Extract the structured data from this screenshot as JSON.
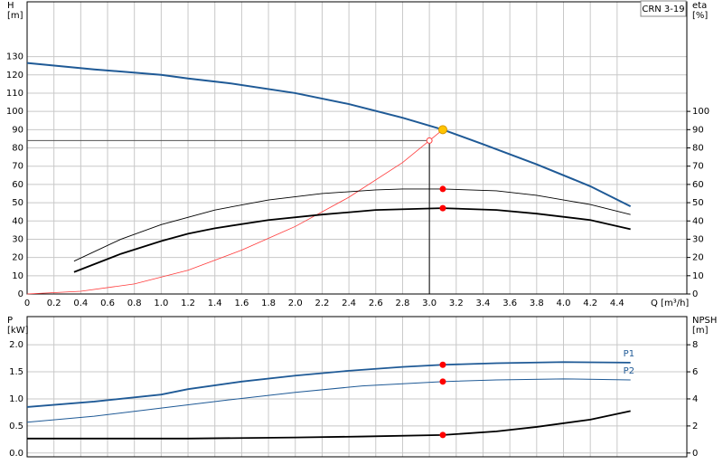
{
  "chart_data": [
    {
      "type": "line",
      "title": "CRN 3-19",
      "y_label": [
        "H",
        "[m]"
      ],
      "y2_label": [
        "eta",
        "[%]"
      ],
      "x_label": "Q [m³/h]",
      "xlim": [
        0,
        4.92
      ],
      "ylim": [
        0,
        160
      ],
      "y2lim": [
        0,
        160
      ],
      "xticks": [
        0,
        0.2,
        0.4,
        0.6,
        0.8,
        {
          "value": 1,
          "label": "1.0"
        },
        1.2,
        1.4,
        1.6,
        1.8,
        {
          "value": 2,
          "label": "2.0"
        },
        2.2,
        2.4,
        2.6,
        2.8,
        {
          "value": 3,
          "label": "3.0"
        },
        3.2,
        3.4,
        3.6,
        3.8,
        {
          "value": 4,
          "label": "4.0"
        },
        4.2,
        4.4
      ],
      "yticks": [
        0,
        10,
        20,
        30,
        40,
        50,
        60,
        70,
        80,
        90,
        100,
        110,
        120,
        130
      ],
      "y2ticks": [
        0,
        10,
        20,
        30,
        40,
        50,
        60,
        70,
        80,
        90,
        100
      ],
      "grid": true,
      "duty_point": {
        "x": 3.1,
        "y": 90
      },
      "required_point": {
        "x": 3.0,
        "y": 84
      },
      "series": [
        {
          "color": "#1f5a96",
          "width": 2,
          "marker": false,
          "x": [
            0,
            0.5,
            1.0,
            1.2,
            1.5,
            2.0,
            2.4,
            2.8,
            3.1,
            3.4,
            3.8,
            4.2,
            4.5
          ],
          "values": [
            126.5,
            123,
            120,
            118,
            115.5,
            110,
            104,
            96.5,
            90,
            82,
            71,
            59,
            48
          ]
        },
        {
          "color": "#ff3b3b",
          "width": 0.8,
          "marker": false,
          "x": [
            0,
            0.4,
            0.8,
            1.2,
            1.6,
            2.0,
            2.4,
            2.8,
            3.0,
            3.1
          ],
          "values": [
            0,
            1.5,
            5.5,
            13,
            24,
            37,
            53,
            72,
            84,
            90
          ]
        },
        {
          "color": "#000000",
          "width": 0.9,
          "marker": true,
          "axis": "y2",
          "x": [
            0.35,
            0.7,
            1.0,
            1.4,
            1.8,
            2.2,
            2.6,
            2.8,
            3.1,
            3.5,
            3.8,
            4.2,
            4.5
          ],
          "values": [
            18,
            30,
            38,
            46,
            51.5,
            55,
            57,
            57.5,
            57.5,
            56.5,
            54,
            49,
            43.5
          ]
        },
        {
          "color": "#000000",
          "width": 1.8,
          "marker": true,
          "axis": "y2",
          "x": [
            0.35,
            0.7,
            1.0,
            1.2,
            1.4,
            1.8,
            2.2,
            2.6,
            3.0,
            3.1,
            3.5,
            3.8,
            4.2,
            4.5
          ],
          "values": [
            12,
            22,
            29,
            33,
            36,
            40.5,
            43.5,
            46,
            46.8,
            47,
            46,
            44,
            40.5,
            35.5
          ]
        }
      ]
    },
    {
      "type": "line",
      "y_label": [
        "P",
        "[kW]"
      ],
      "y2_label": [
        "NPSH",
        "[m]"
      ],
      "xlim": [
        0,
        4.92
      ],
      "ylim": [
        -0.07,
        2.52
      ],
      "y2lim": [
        -0.28,
        10.08
      ],
      "xticks": [
        0,
        0.2,
        0.4,
        0.6,
        0.8,
        1,
        1.2,
        1.4,
        1.6,
        1.8,
        2,
        2.2,
        2.4,
        2.6,
        2.8,
        3,
        3.2,
        3.4,
        3.6,
        3.8,
        4,
        4.2,
        4.4
      ],
      "yticks": [
        {
          "value": 0,
          "label": "0.0"
        },
        0.5,
        {
          "value": 1,
          "label": "1.0"
        },
        1.5,
        {
          "value": 2,
          "label": "2.0"
        }
      ],
      "y2ticks": [
        0,
        2,
        4,
        6,
        8
      ],
      "grid": true,
      "duty_x": 3.1,
      "series": [
        {
          "name": "P1",
          "color": "#1f5a96",
          "width": 1.8,
          "marker": true,
          "x": [
            0,
            0.5,
            1.0,
            1.2,
            1.6,
            2.0,
            2.4,
            2.8,
            3.1,
            3.5,
            4.0,
            4.5
          ],
          "values": [
            0.85,
            0.95,
            1.08,
            1.18,
            1.32,
            1.43,
            1.52,
            1.59,
            1.63,
            1.66,
            1.68,
            1.67
          ]
        },
        {
          "name": "P2",
          "color": "#1f5a96",
          "width": 1,
          "marker": true,
          "x": [
            0,
            0.5,
            1.0,
            1.5,
            2.0,
            2.5,
            3.1,
            3.5,
            4.0,
            4.5
          ],
          "values": [
            0.57,
            0.68,
            0.83,
            0.98,
            1.12,
            1.24,
            1.32,
            1.35,
            1.37,
            1.35
          ]
        },
        {
          "color": "#000000",
          "width": 1.8,
          "marker": true,
          "axis": "y2",
          "x": [
            0,
            1.2,
            2.0,
            2.5,
            3.1,
            3.5,
            3.8,
            4.2,
            4.5
          ],
          "values": [
            1.07,
            1.07,
            1.15,
            1.22,
            1.33,
            1.6,
            1.93,
            2.47,
            3.1
          ]
        }
      ]
    }
  ]
}
